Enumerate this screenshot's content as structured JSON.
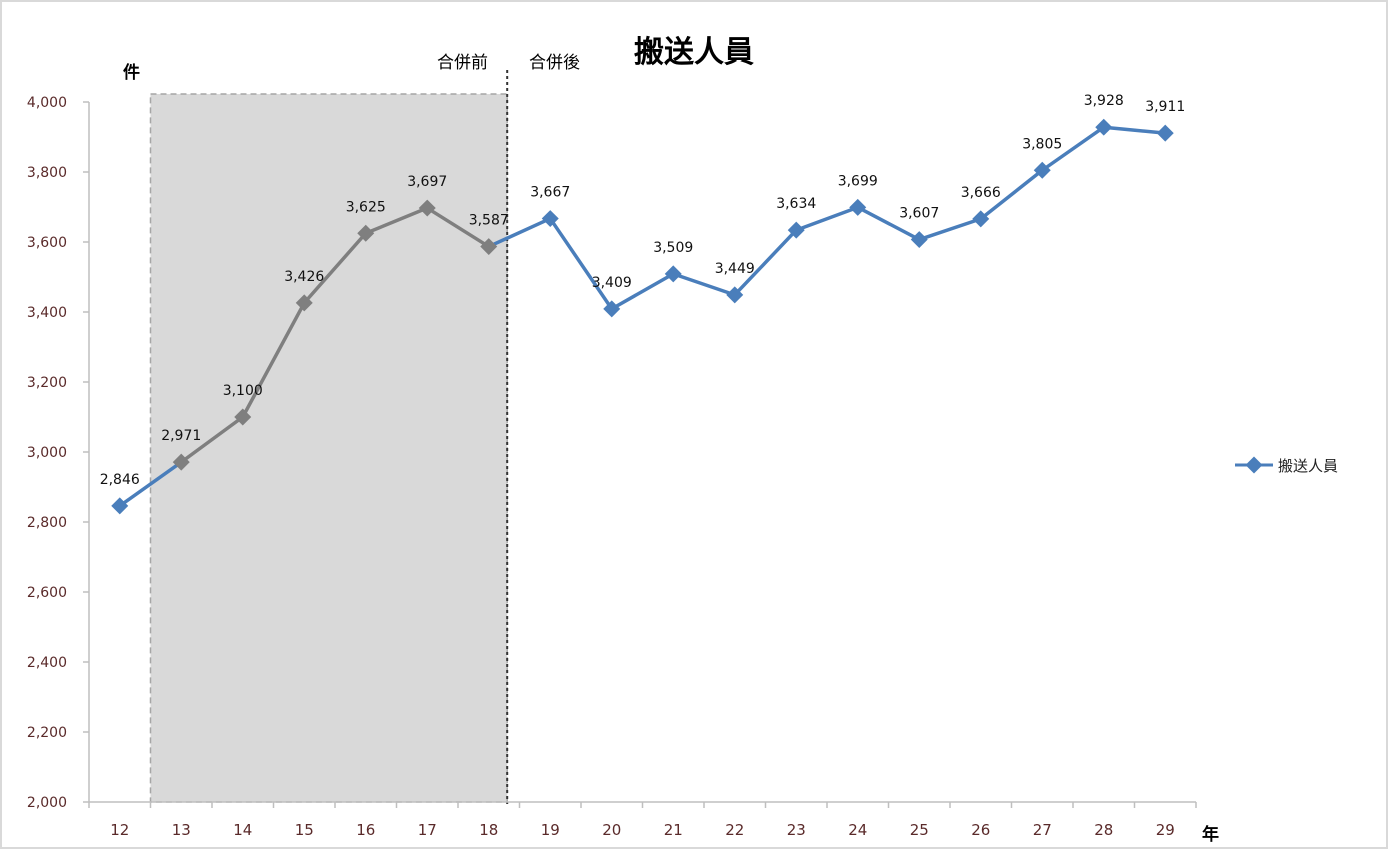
{
  "chart_data": {
    "type": "line",
    "title": "搬送人員",
    "y_unit_label": "件",
    "x_unit_label": "年",
    "phase_labels": {
      "before": "合併前",
      "after": "合併後"
    },
    "categories": [
      "12",
      "13",
      "14",
      "15",
      "16",
      "17",
      "18",
      "19",
      "20",
      "21",
      "22",
      "23",
      "24",
      "25",
      "26",
      "27",
      "28",
      "29"
    ],
    "series": [
      {
        "name": "搬送人員",
        "values": [
          2846,
          2971,
          3100,
          3426,
          3625,
          3697,
          3587,
          3667,
          3409,
          3509,
          3449,
          3634,
          3699,
          3607,
          3666,
          3805,
          3928,
          3911
        ]
      }
    ],
    "data_labels": [
      "2,846",
      "2,971",
      "3,100",
      "3,426",
      "3,625",
      "3,697",
      "3,587",
      "3,667",
      "3,409",
      "3,509",
      "3,449",
      "3,634",
      "3,699",
      "3,607",
      "3,666",
      "3,805",
      "3,928",
      "3,911"
    ],
    "ylim": [
      2000,
      4000
    ],
    "yticks": [
      2000,
      2200,
      2400,
      2600,
      2800,
      3000,
      3200,
      3400,
      3600,
      3800,
      4000
    ],
    "ytick_labels": [
      "2,000",
      "2,200",
      "2,400",
      "2,600",
      "2,800",
      "3,000",
      "3,200",
      "3,400",
      "3,600",
      "3,800",
      "4,000"
    ],
    "shaded_range": {
      "from": "13",
      "to": "18",
      "note": "合併前"
    },
    "divider_after": "18",
    "legend_position": "right",
    "colors": {
      "series_main": "#4a7ebb",
      "series_pre_merger": "#7f7f7f",
      "shade": "#d9d9d9",
      "axis": "#bfbfbf"
    }
  }
}
